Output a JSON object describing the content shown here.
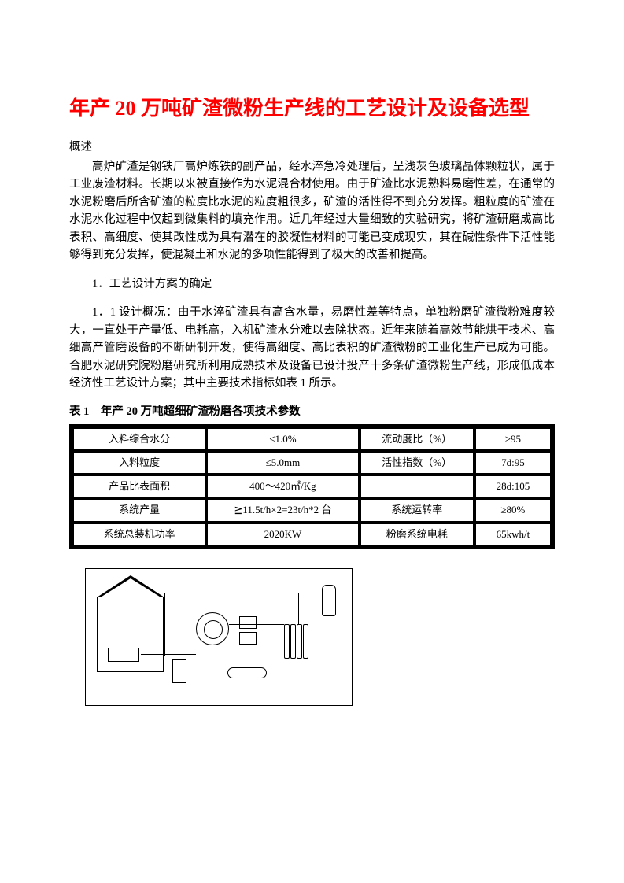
{
  "title": "年产 20 万吨矿渣微粉生产线的工艺设计及设备选型",
  "overview_label": "概述",
  "overview_para": "高炉矿渣是钢铁厂高炉炼铁的副产品，经水淬急冷处理后，呈浅灰色玻璃晶体颗粒状，属于工业废渣材料。长期以来被直接作为水泥混合材使用。由于矿渣比水泥熟料易磨性差，在通常的水泥粉磨后所含矿渣的粒度比水泥的粒度粗很多，矿渣的活性得不到充分发挥。粗粒度的矿渣在水泥水化过程中仅起到微集料的填充作用。近几年经过大量细致的实验研究，将矿渣研磨成高比表积、高细度、使其改性成为具有潜在的胶凝性材料的可能已变成现实，其在碱性条件下活性能够得到充分发挥，使混凝土和水泥的多项性能得到了极大的改善和提高。",
  "section1_heading": "1．工艺设计方案的确定",
  "section1_para": "1．1 设计概况：由于水淬矿渣具有高含水量，易磨性差等特点，单独粉磨矿渣微粉难度较大，一直处于产量低、电耗高，入机矿渣水分难以去除状态。近年来随着高效节能烘干技术、高细高产管磨设备的不断研制开发，使得高细度、高比表积的矿渣微粉的工业化生产已成为可能。合肥水泥研究院粉磨研究所利用成熟技术及设备已设计投产十多条矿渣微粉生产线，形成低成本经济性工艺设计方案；其中主要技术指标如表 1 所示。",
  "table_caption": "表 1　年产 20 万吨超细矿渣粉磨各项技术参数",
  "table": {
    "rows": [
      {
        "c1": "入料综合水分",
        "c2": "≤1.0%",
        "c3": "流动度比（%）",
        "c4": "≥95"
      },
      {
        "c1": "入料粒度",
        "c2": "≤5.0mm",
        "c3": "活性指数（%）",
        "c4": "7d:95"
      },
      {
        "c1": "产品比表面积",
        "c2": "400～420㎡/Kg",
        "c3": "",
        "c4": "28d:105"
      },
      {
        "c1": "系统产量",
        "c2": "≧11.5t/h×2=23t/h*2 台",
        "c3": "系统运转率",
        "c4": "≥80%"
      },
      {
        "c1": "系统总装机功率",
        "c2": "2020KW",
        "c3": "粉磨系统电耗",
        "c4": "65kwh/t"
      }
    ]
  },
  "colors": {
    "title": "#ff0000",
    "text": "#000000",
    "background": "#ffffff",
    "table_border": "#000000"
  },
  "typography": {
    "title_fontsize_pt": 20,
    "body_fontsize_pt": 11,
    "font_family": "SimSun"
  }
}
